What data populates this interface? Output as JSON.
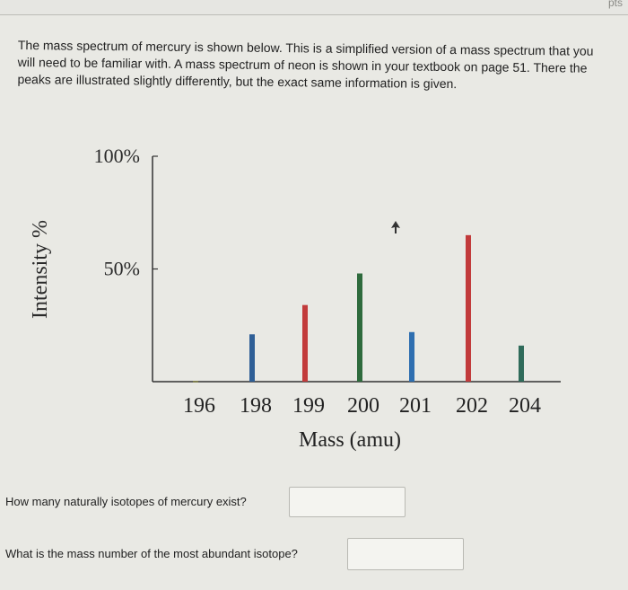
{
  "header": {
    "points_label": "pts"
  },
  "intro": {
    "text": "The mass spectrum of mercury is shown below. This is a simplified version of a mass spectrum that you will need to be familiar with. A mass spectrum of neon is shown in your textbook on page 51. There the peaks are illustrated slightly differently, but the exact same information is given."
  },
  "chart_data": {
    "type": "bar",
    "categories": [
      "196",
      "198",
      "199",
      "200",
      "201",
      "202",
      "204"
    ],
    "values": [
      0.3,
      21,
      34,
      48,
      22,
      65,
      16
    ],
    "bar_colors": [
      "#7a7a3c",
      "#2f5f96",
      "#c23b3b",
      "#2f6b3d",
      "#2f6fb0",
      "#c23b3b",
      "#2f6b5a"
    ],
    "ylabel": "Intensity %",
    "xlabel": "Mass (amu)",
    "ytick_labels": [
      "100%",
      "50%"
    ],
    "ytick_values": [
      100,
      50
    ],
    "ylim": [
      0,
      100
    ],
    "grid": false
  },
  "questions": [
    {
      "text": "How many naturally isotopes of mercury exist?",
      "answer_value": ""
    },
    {
      "text": "What is the mass number of the most abundant isotope?",
      "answer_value": ""
    }
  ]
}
